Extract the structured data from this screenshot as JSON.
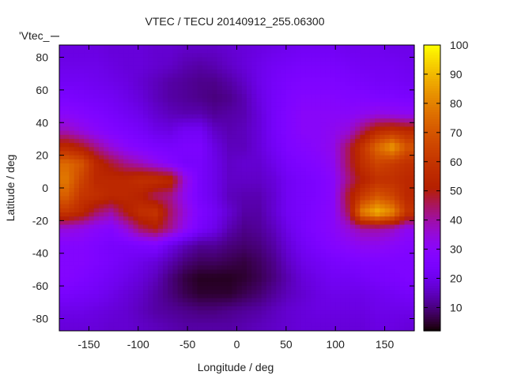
{
  "chart_data": {
    "type": "heatmap",
    "title": "VTEC / TECU 20140912_255.06300",
    "xlabel": "Longitude / deg",
    "ylabel": "Latitude / deg",
    "key_label": "'Vtec_",
    "xlim": [
      -180,
      180
    ],
    "ylim": [
      -87.5,
      87.5
    ],
    "xticks": [
      -150,
      -100,
      -50,
      0,
      50,
      100,
      150
    ],
    "yticks": [
      80,
      60,
      40,
      20,
      0,
      -20,
      -40,
      -60,
      -80
    ],
    "colorbar": {
      "range": [
        2,
        100
      ],
      "ticks": [
        10,
        20,
        30,
        40,
        50,
        60,
        70,
        80,
        90,
        100
      ],
      "palette": "black-blue-red-yellow"
    },
    "grid_lon_centers": [
      -172.5,
      -157.5,
      -142.5,
      -127.5,
      -112.5,
      -97.5,
      -82.5,
      -67.5,
      -52.5,
      -37.5,
      -22.5,
      -7.5,
      7.5,
      22.5,
      37.5,
      52.5,
      67.5,
      82.5,
      97.5,
      112.5,
      127.5,
      142.5,
      157.5,
      172.5
    ],
    "grid_lat_centers": [
      85,
      75,
      65,
      55,
      45,
      35,
      25,
      15,
      5,
      -5,
      -15,
      -25,
      -35,
      -45,
      -55,
      -65,
      -75,
      -85
    ],
    "values": [
      [
        19,
        19,
        19,
        18,
        18,
        18,
        17,
        17,
        16,
        16,
        16,
        17,
        18,
        19,
        20,
        21,
        22,
        22,
        22,
        21,
        21,
        21,
        20,
        20
      ],
      [
        20,
        20,
        20,
        19,
        18,
        18,
        17,
        16,
        14,
        13,
        14,
        16,
        18,
        20,
        22,
        23,
        24,
        24,
        24,
        23,
        22,
        22,
        22,
        21
      ],
      [
        22,
        22,
        21,
        20,
        19,
        17,
        15,
        13,
        12,
        11,
        11,
        13,
        16,
        20,
        23,
        25,
        26,
        26,
        26,
        25,
        24,
        23,
        23,
        22
      ],
      [
        25,
        24,
        23,
        22,
        20,
        18,
        15,
        13,
        12,
        11,
        10,
        11,
        14,
        19,
        23,
        26,
        28,
        28,
        28,
        27,
        27,
        26,
        26,
        25
      ],
      [
        30,
        28,
        26,
        24,
        22,
        20,
        17,
        15,
        14,
        14,
        12,
        13,
        14,
        18,
        23,
        27,
        30,
        30,
        30,
        30,
        32,
        34,
        33,
        32
      ],
      [
        38,
        34,
        30,
        27,
        25,
        23,
        20,
        19,
        22,
        22,
        16,
        14,
        15,
        18,
        23,
        27,
        30,
        30,
        32,
        35,
        45,
        55,
        58,
        55
      ],
      [
        55,
        50,
        42,
        35,
        30,
        27,
        25,
        24,
        25,
        25,
        19,
        15,
        15,
        18,
        22,
        26,
        28,
        30,
        33,
        45,
        60,
        75,
        85,
        70
      ],
      [
        75,
        70,
        55,
        48,
        42,
        38,
        33,
        28,
        24,
        24,
        20,
        16,
        17,
        17,
        20,
        24,
        26,
        28,
        32,
        45,
        58,
        65,
        62,
        58
      ],
      [
        78,
        65,
        55,
        55,
        55,
        58,
        58,
        55,
        35,
        24,
        20,
        16,
        16,
        16,
        18,
        22,
        24,
        26,
        30,
        42,
        52,
        58,
        58,
        55
      ],
      [
        72,
        60,
        58,
        55,
        55,
        52,
        45,
        42,
        32,
        24,
        20,
        15,
        14,
        14,
        17,
        22,
        24,
        26,
        30,
        48,
        62,
        70,
        65,
        55
      ],
      [
        60,
        55,
        45,
        40,
        50,
        58,
        60,
        45,
        35,
        26,
        22,
        17,
        13,
        13,
        17,
        22,
        24,
        27,
        30,
        45,
        80,
        90,
        82,
        60
      ],
      [
        35,
        33,
        30,
        28,
        35,
        45,
        50,
        42,
        32,
        24,
        20,
        14,
        11,
        12,
        15,
        20,
        24,
        27,
        30,
        35,
        40,
        40,
        38,
        32
      ],
      [
        28,
        28,
        26,
        24,
        24,
        25,
        26,
        20,
        15,
        12,
        12,
        10,
        9,
        10,
        13,
        18,
        22,
        25,
        28,
        30,
        32,
        32,
        30,
        28
      ],
      [
        28,
        28,
        26,
        24,
        22,
        20,
        18,
        14,
        10,
        8,
        8,
        7,
        6,
        8,
        11,
        16,
        20,
        22,
        24,
        25,
        26,
        26,
        26,
        26
      ],
      [
        28,
        26,
        24,
        22,
        20,
        18,
        15,
        10,
        6,
        4,
        4,
        4,
        5,
        7,
        10,
        14,
        18,
        20,
        22,
        22,
        23,
        24,
        25,
        26
      ],
      [
        24,
        23,
        22,
        20,
        18,
        16,
        13,
        10,
        7,
        5,
        5,
        5,
        7,
        9,
        12,
        15,
        17,
        19,
        20,
        20,
        20,
        21,
        22,
        23
      ],
      [
        20,
        20,
        19,
        18,
        17,
        15,
        13,
        12,
        11,
        10,
        10,
        11,
        12,
        13,
        15,
        17,
        18,
        19,
        19,
        19,
        19,
        20,
        20,
        20
      ],
      [
        18,
        18,
        18,
        17,
        17,
        16,
        15,
        14,
        13,
        13,
        13,
        13,
        14,
        15,
        16,
        17,
        18,
        18,
        18,
        18,
        18,
        19,
        19,
        18
      ]
    ]
  }
}
